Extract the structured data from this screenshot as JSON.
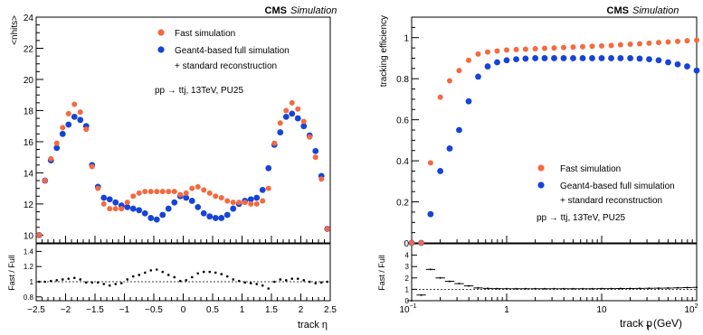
{
  "chart_data": [
    {
      "type": "scatter",
      "banner_bold": "CMS",
      "banner_italic": "Simulation",
      "ylabel": "<nhits>",
      "xlabel": "track η",
      "ylim": [
        9.5,
        24
      ],
      "xlim": [
        -2.5,
        2.5
      ],
      "yticks": [
        "10",
        "12",
        "14",
        "16",
        "18",
        "20",
        "22",
        "24"
      ],
      "xticks": [
        "−2.5",
        "−2",
        "−1.5",
        "−1",
        "−0.5",
        "0",
        "0.5",
        "1",
        "1.5",
        "2",
        "2.5"
      ],
      "legend": [
        "Fast simulation",
        "Geant4-based full simulation",
        "+ standard reconstruction"
      ],
      "info": "pp → ttj, 13TeV, PU25",
      "colors": {
        "fast": "#f5693f",
        "full": "#1743d8"
      },
      "x": [
        -2.45,
        -2.35,
        -2.25,
        -2.15,
        -2.05,
        -1.95,
        -1.85,
        -1.75,
        -1.65,
        -1.55,
        -1.45,
        -1.35,
        -1.25,
        -1.15,
        -1.05,
        -0.95,
        -0.85,
        -0.75,
        -0.65,
        -0.55,
        -0.45,
        -0.35,
        -0.25,
        -0.15,
        -0.05,
        0.05,
        0.15,
        0.25,
        0.35,
        0.45,
        0.55,
        0.65,
        0.75,
        0.85,
        0.95,
        1.05,
        1.15,
        1.25,
        1.35,
        1.45,
        1.55,
        1.65,
        1.75,
        1.85,
        1.95,
        2.05,
        2.15,
        2.25,
        2.35,
        2.45
      ],
      "series": [
        {
          "name": "Fast simulation",
          "values": [
            10.0,
            13.5,
            14.9,
            15.9,
            16.9,
            17.8,
            18.4,
            17.9,
            16.8,
            14.4,
            13.0,
            12.0,
            11.7,
            11.7,
            11.7,
            12.1,
            12.5,
            12.7,
            12.8,
            12.8,
            12.8,
            12.8,
            12.8,
            12.8,
            12.6,
            12.7,
            13.0,
            13.1,
            12.9,
            12.7,
            12.5,
            12.4,
            12.2,
            12.1,
            12.1,
            12.1,
            12.0,
            12.0,
            12.2,
            13.0,
            15.9,
            17.2,
            18.0,
            18.5,
            18.1,
            17.3,
            16.3,
            15.0,
            13.6,
            10.4
          ]
        },
        {
          "name": "Geant4-based full simulation",
          "values": [
            10.0,
            13.5,
            14.8,
            15.6,
            16.5,
            17.1,
            17.6,
            17.4,
            17.0,
            14.5,
            13.1,
            12.4,
            12.3,
            12.1,
            11.9,
            11.8,
            11.7,
            11.6,
            11.4,
            11.1,
            11.0,
            11.3,
            11.7,
            12.1,
            12.5,
            12.4,
            12.2,
            11.8,
            11.4,
            11.2,
            11.1,
            11.1,
            11.3,
            11.7,
            12.0,
            12.2,
            12.3,
            12.4,
            12.9,
            14.3,
            15.8,
            16.6,
            17.6,
            17.8,
            17.5,
            17.0,
            16.4,
            15.4,
            13.8,
            10.4
          ]
        }
      ],
      "ratio": {
        "ylabel": "Fast / Full",
        "ylim": [
          0.75,
          1.5
        ],
        "yticks": [
          "0.8",
          "1",
          "1.2",
          "1.4"
        ],
        "values": [
          1.0,
          1.0,
          1.01,
          1.02,
          1.03,
          1.04,
          1.05,
          1.03,
          0.99,
          0.99,
          0.99,
          0.97,
          0.95,
          0.97,
          0.98,
          1.03,
          1.07,
          1.09,
          1.12,
          1.15,
          1.16,
          1.13,
          1.09,
          1.06,
          1.01,
          1.02,
          1.06,
          1.11,
          1.13,
          1.13,
          1.12,
          1.1,
          1.07,
          1.03,
          1.01,
          0.99,
          0.98,
          0.97,
          0.95,
          0.91,
          1.0,
          1.03,
          1.02,
          1.04,
          1.04,
          1.02,
          1.0,
          0.98,
          0.99,
          1.0
        ]
      }
    },
    {
      "type": "scatter",
      "banner_bold": "CMS",
      "banner_italic": "Simulation",
      "ylabel": "tracking efficiency",
      "xlabel": "track p",
      "xlabel_sub": "T",
      "xlabel_unit": "(GeV)",
      "xscale": "log",
      "xlim": [
        0.1,
        100
      ],
      "ylim": [
        0,
        1.1
      ],
      "yticks": [
        "0",
        "0.2",
        "0.4",
        "0.6",
        "0.8",
        "1"
      ],
      "xticks": [
        "10",
        "1",
        "10",
        "10"
      ],
      "xtick_sups": [
        "−1",
        "",
        "",
        "2"
      ],
      "legend": [
        "Fast simulation",
        "Geant4-based full simulation",
        "+ standard reconstruction"
      ],
      "info": "pp → ttj, 13TeV, PU25",
      "colors": {
        "fast": "#f5693f",
        "full": "#1743d8"
      },
      "x": [
        0.1,
        0.126,
        0.158,
        0.2,
        0.251,
        0.316,
        0.398,
        0.501,
        0.631,
        0.794,
        1.0,
        1.26,
        1.58,
        2.0,
        2.51,
        3.16,
        3.98,
        5.01,
        6.31,
        7.94,
        10.0,
        12.6,
        15.8,
        20.0,
        25.1,
        31.6,
        39.8,
        50.1,
        63.1,
        79.4,
        100.0
      ],
      "series": [
        {
          "name": "Fast simulation",
          "values": [
            0.0,
            0.0,
            0.39,
            0.71,
            0.79,
            0.84,
            0.89,
            0.92,
            0.93,
            0.935,
            0.94,
            0.942,
            0.944,
            0.946,
            0.948,
            0.95,
            0.952,
            0.954,
            0.956,
            0.958,
            0.96,
            0.962,
            0.965,
            0.968,
            0.97,
            0.973,
            0.976,
            0.979,
            0.982,
            0.985,
            0.988
          ]
        },
        {
          "name": "Geant4-based full simulation",
          "values": [
            0.0,
            0.0,
            0.14,
            0.35,
            0.46,
            0.55,
            0.69,
            0.81,
            0.86,
            0.88,
            0.89,
            0.895,
            0.898,
            0.9,
            0.9,
            0.9,
            0.9,
            0.9,
            0.9,
            0.9,
            0.9,
            0.9,
            0.9,
            0.9,
            0.898,
            0.895,
            0.89,
            0.88,
            0.87,
            0.86,
            0.84
          ]
        }
      ],
      "ratio": {
        "ylabel": "Fast / Full",
        "ylim": [
          0,
          5
        ],
        "yticks": [
          "0",
          "1",
          "2",
          "3",
          "4"
        ],
        "values": [
          0.0,
          0.5,
          2.75,
          2.0,
          1.7,
          1.5,
          1.3,
          1.12,
          1.08,
          1.06,
          1.05,
          1.05,
          1.05,
          1.05,
          1.05,
          1.05,
          1.05,
          1.05,
          1.05,
          1.05,
          1.06,
          1.06,
          1.07,
          1.07,
          1.08,
          1.09,
          1.1,
          1.11,
          1.13,
          1.15,
          1.17
        ]
      }
    }
  ]
}
